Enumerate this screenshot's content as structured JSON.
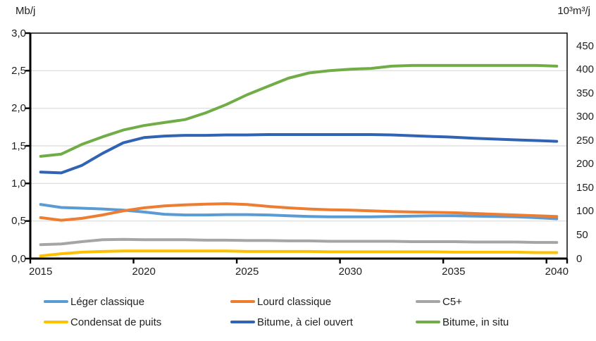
{
  "chart_data": {
    "type": "line",
    "title": "",
    "y_left_axis": {
      "unit_label": "Mb/j",
      "tick_labels": [
        "3,0",
        "2,5",
        "2,0",
        "1,5",
        "1,0",
        "0,5",
        "0,0"
      ],
      "tick_values": [
        3.0,
        2.5,
        2.0,
        1.5,
        1.0,
        0.5,
        0.0
      ],
      "range": [
        0,
        3.0
      ],
      "grid": true
    },
    "y_right_axis": {
      "unit_label": "10³m³/j",
      "tick_labels": [
        "450",
        "400",
        "350",
        "300",
        "250",
        "200",
        "150",
        "100",
        "50",
        "0"
      ],
      "tick_values": [
        450,
        400,
        350,
        300,
        250,
        200,
        150,
        100,
        50,
        0
      ],
      "range": [
        0,
        450
      ],
      "grid": false
    },
    "x_axis": {
      "tick_labels": [
        "2015",
        "2020",
        "2025",
        "2030",
        "2035",
        "2040"
      ],
      "years": [
        2015,
        2016,
        2017,
        2018,
        2019,
        2020,
        2021,
        2022,
        2023,
        2024,
        2025,
        2026,
        2027,
        2028,
        2029,
        2030,
        2031,
        2032,
        2033,
        2034,
        2035,
        2036,
        2037,
        2038,
        2039,
        2040
      ]
    },
    "legend_position": "bottom",
    "series": [
      {
        "name": "Léger classique",
        "color": "#5B9BD5",
        "unit": "Mb/j",
        "values": [
          0.72,
          0.68,
          0.67,
          0.66,
          0.645,
          0.62,
          0.59,
          0.58,
          0.58,
          0.585,
          0.585,
          0.58,
          0.57,
          0.56,
          0.555,
          0.555,
          0.555,
          0.56,
          0.565,
          0.57,
          0.57,
          0.565,
          0.56,
          0.555,
          0.545,
          0.53
        ]
      },
      {
        "name": "Lourd classique",
        "color": "#ED7D31",
        "unit": "Mb/j",
        "values": [
          0.545,
          0.51,
          0.535,
          0.58,
          0.635,
          0.675,
          0.7,
          0.715,
          0.725,
          0.73,
          0.72,
          0.695,
          0.675,
          0.66,
          0.65,
          0.645,
          0.635,
          0.625,
          0.62,
          0.615,
          0.61,
          0.6,
          0.59,
          0.58,
          0.57,
          0.56
        ]
      },
      {
        "name": "C5+",
        "color": "#A5A5A5",
        "unit": "Mb/j",
        "values": [
          0.185,
          0.195,
          0.225,
          0.25,
          0.255,
          0.25,
          0.25,
          0.25,
          0.245,
          0.245,
          0.24,
          0.24,
          0.235,
          0.235,
          0.23,
          0.23,
          0.23,
          0.23,
          0.225,
          0.225,
          0.225,
          0.22,
          0.22,
          0.22,
          0.215,
          0.215
        ]
      },
      {
        "name": "Condensat de puits",
        "color": "#FFC000",
        "unit": "Mb/j",
        "values": [
          0.035,
          0.065,
          0.085,
          0.095,
          0.1,
          0.1,
          0.1,
          0.1,
          0.1,
          0.1,
          0.095,
          0.095,
          0.095,
          0.095,
          0.09,
          0.09,
          0.09,
          0.09,
          0.09,
          0.09,
          0.085,
          0.085,
          0.085,
          0.085,
          0.08,
          0.08
        ]
      },
      {
        "name": "Bitume, à ciel ouvert",
        "color": "#3163B5",
        "unit": "Mb/j",
        "values": [
          1.15,
          1.14,
          1.24,
          1.4,
          1.54,
          1.61,
          1.63,
          1.64,
          1.64,
          1.645,
          1.645,
          1.65,
          1.65,
          1.65,
          1.65,
          1.65,
          1.65,
          1.645,
          1.635,
          1.625,
          1.615,
          1.6,
          1.59,
          1.58,
          1.57,
          1.56
        ]
      },
      {
        "name": "Bitume, in situ",
        "color": "#70AD47",
        "unit": "Mb/j",
        "values": [
          1.36,
          1.39,
          1.52,
          1.62,
          1.71,
          1.77,
          1.81,
          1.85,
          1.94,
          2.05,
          2.18,
          2.29,
          2.4,
          2.47,
          2.5,
          2.52,
          2.53,
          2.56,
          2.57,
          2.57,
          2.57,
          2.57,
          2.57,
          2.57,
          2.57,
          2.56
        ]
      }
    ],
    "style_colors": {
      "gridline": "#D9D9D9",
      "frame": "#1a1a1a",
      "axis": "#000000",
      "text": "#212121"
    }
  }
}
